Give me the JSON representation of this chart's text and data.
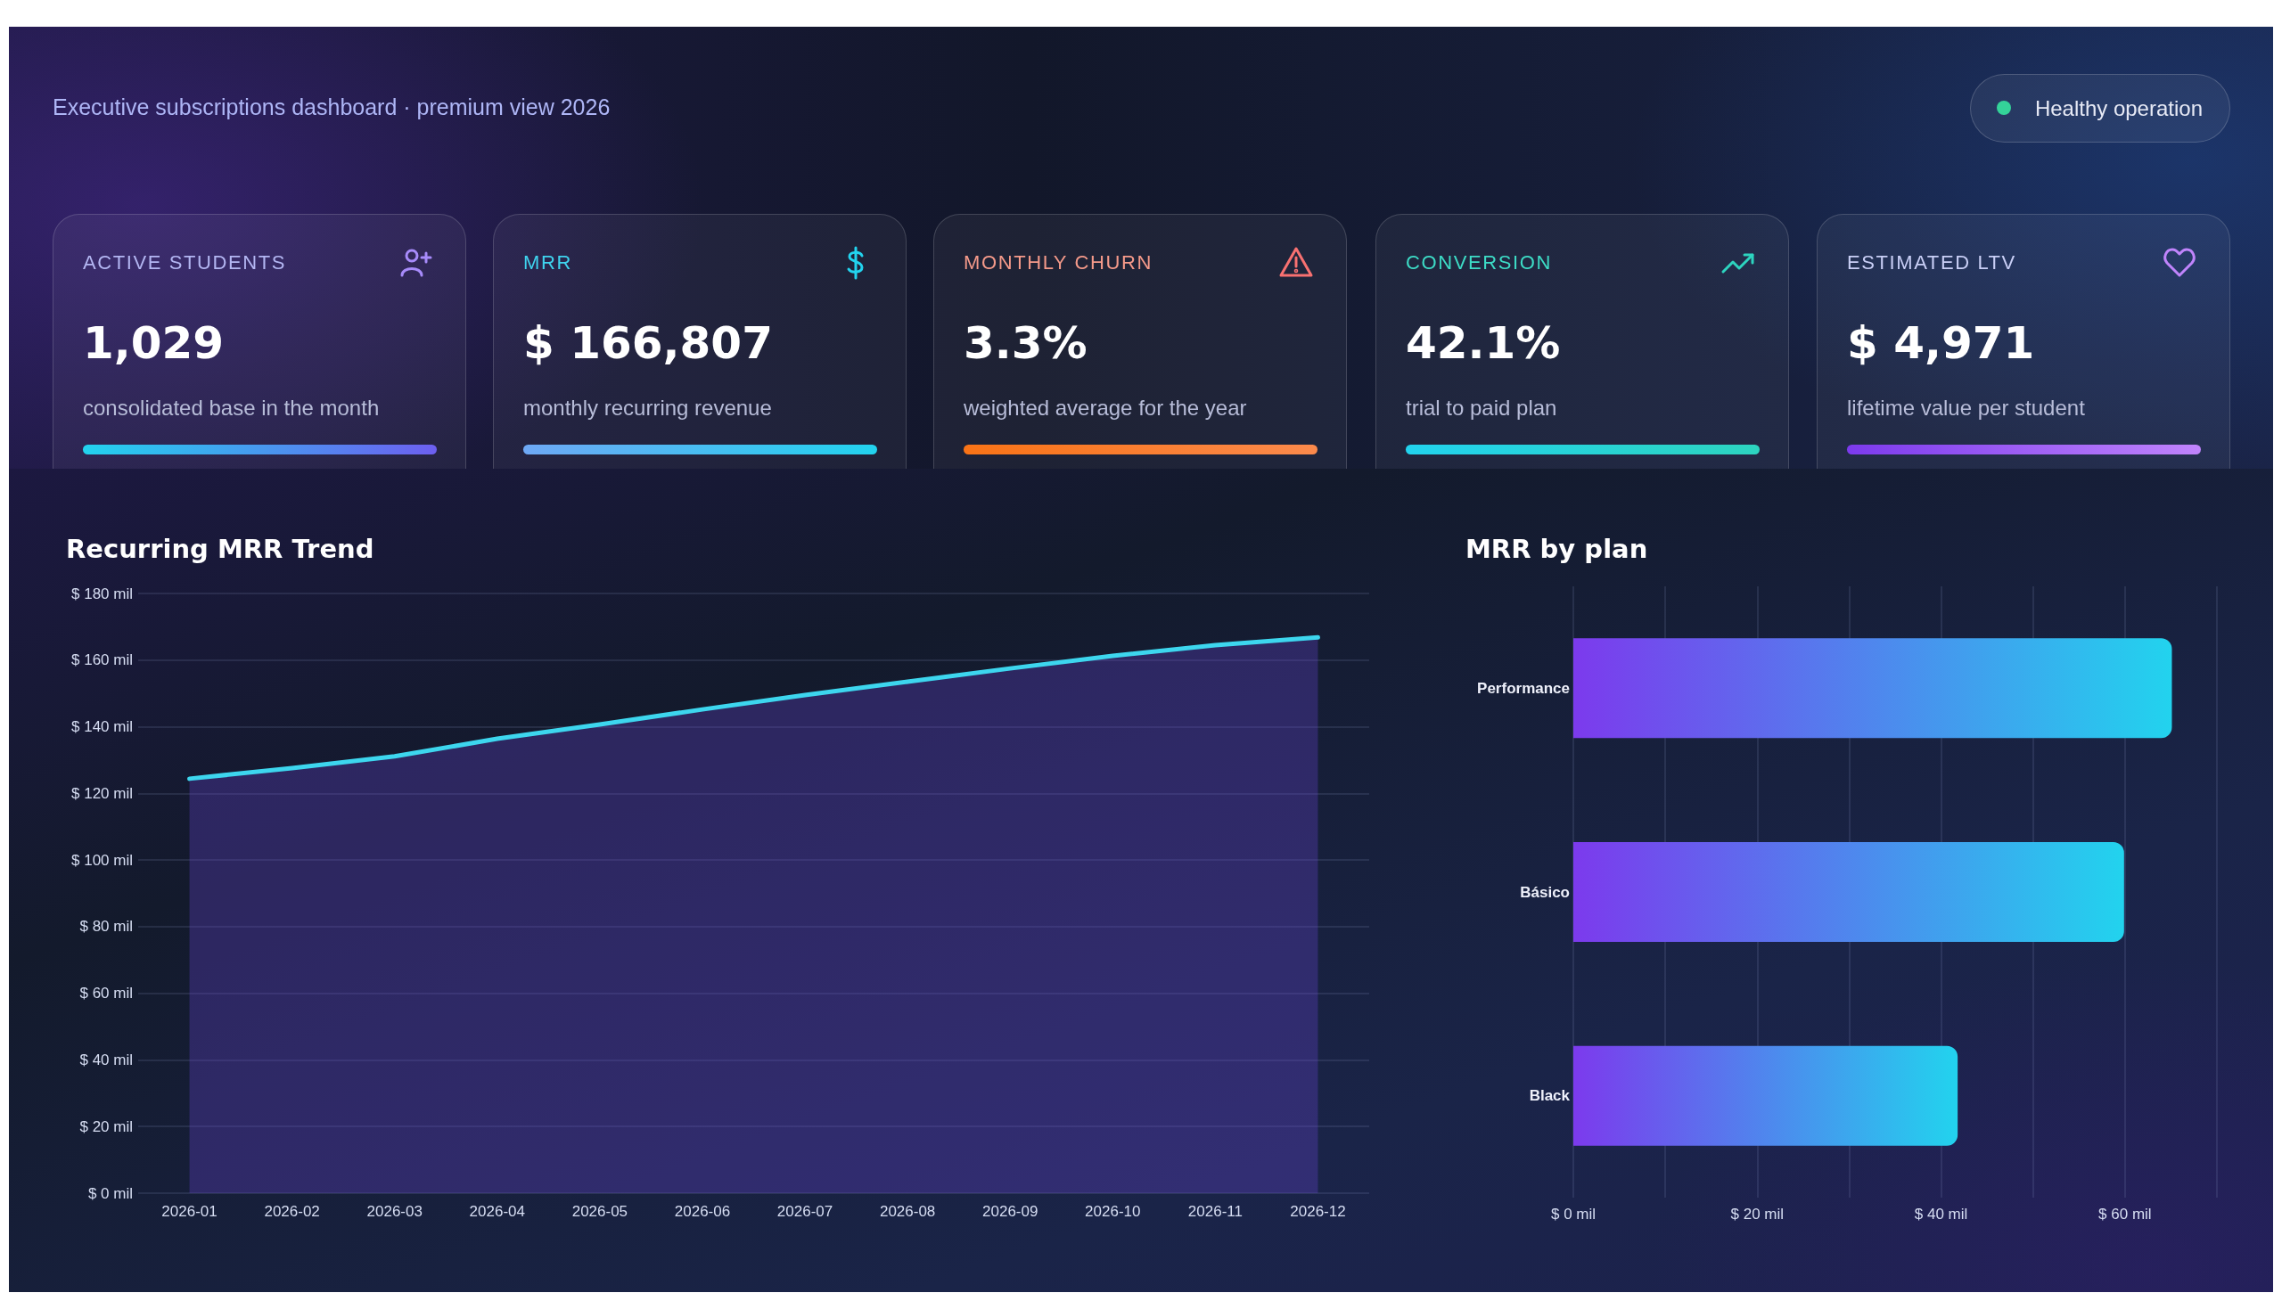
{
  "chart_data": [
    {
      "type": "other",
      "subtitle": "Executive subscriptions dashboard · premium view 2026",
      "annotations": [
        "Healthy operation"
      ]
    },
    {
      "type": "other",
      "title": "ACTIVE STUDENTS",
      "annotations": [
        "1,029",
        "consolidated base in the month"
      ]
    },
    {
      "type": "other",
      "title": "MRR",
      "annotations": [
        "$ 166,807",
        "monthly recurring revenue"
      ]
    },
    {
      "type": "other",
      "title": "MONTHLY CHURN",
      "annotations": [
        "3.3%",
        "weighted average for the year"
      ]
    },
    {
      "type": "other",
      "title": "CONVERSION",
      "annotations": [
        "42.1%",
        "trial to paid plan"
      ]
    },
    {
      "type": "other",
      "title": "ESTIMATED LTV",
      "annotations": [
        "$ 4,971",
        "lifetime value per student"
      ]
    },
    {
      "type": "area",
      "title": "Recurring MRR Trend",
      "categories": [
        "2026-01",
        "2026-02",
        "2026-03",
        "2026-04",
        "2026-05",
        "2026-06",
        "2026-07",
        "2026-08",
        "2026-09",
        "2026-10",
        "2026-11",
        "2026-12"
      ],
      "values": [
        124.4,
        127.6,
        131.1,
        136.4,
        140.7,
        145.2,
        149.5,
        153.5,
        157.5,
        161.3,
        164.5,
        166.8
      ],
      "color": "#3dd6ee",
      "ylim": [
        0,
        180
      ],
      "yticks": [
        {
          "value": 0,
          "label": "$ 0 mil"
        },
        {
          "value": 20,
          "label": "$ 20 mil"
        },
        {
          "value": 40,
          "label": "$ 40 mil"
        },
        {
          "value": 60,
          "label": "$ 60 mil"
        },
        {
          "value": 80,
          "label": "$ 80 mil"
        },
        {
          "value": 100,
          "label": "$ 100 mil"
        },
        {
          "value": 120,
          "label": "$ 120 mil"
        },
        {
          "value": 140,
          "label": "$ 140 mil"
        },
        {
          "value": 160,
          "label": "$ 160 mil"
        },
        {
          "value": 180,
          "label": "$ 180 mil"
        }
      ],
      "grid": "y",
      "marker": "none",
      "line_style": "solid"
    },
    {
      "type": "bar",
      "title": "MRR by plan",
      "orientation": "horizontal",
      "categories": [
        "Performance",
        "Básico",
        "Black"
      ],
      "values": [
        65.1,
        59.9,
        41.8
      ],
      "color": "#22d3ee",
      "xlim": [
        0,
        70
      ],
      "xticks": [
        {
          "value": 0,
          "label": "$ 0 mil"
        },
        {
          "value": 10,
          "label": null
        },
        {
          "value": 20,
          "label": "$ 20 mil"
        },
        {
          "value": 30,
          "label": null
        },
        {
          "value": 40,
          "label": "$ 40 mil"
        },
        {
          "value": 50,
          "label": null
        },
        {
          "value": 60,
          "label": "$ 60 mil"
        },
        {
          "value": 70,
          "label": null
        }
      ],
      "grid": "x"
    }
  ]
}
